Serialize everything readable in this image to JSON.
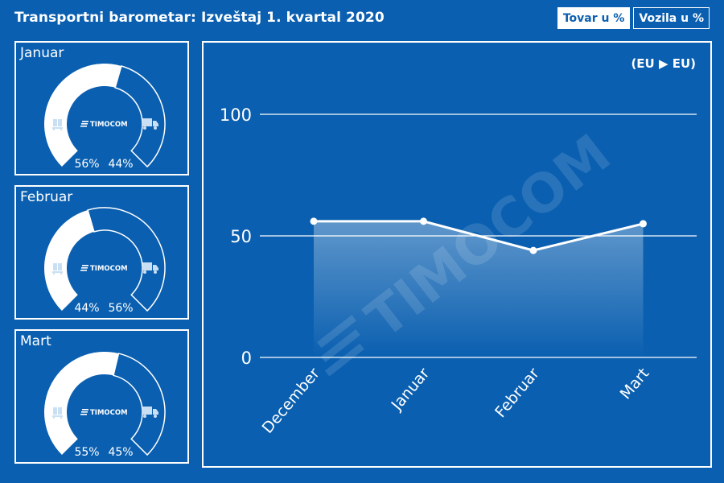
{
  "header": {
    "title": "Transportni barometar: Izveštaj 1. kvartal 2020",
    "tabs": [
      {
        "label": "Tovar u %",
        "active": true
      },
      {
        "label": "Vozila u %",
        "active": false
      }
    ]
  },
  "gauges": [
    {
      "month": "Januar",
      "freight_pct": 56,
      "vehicle_pct": 44,
      "freight_label": "56%",
      "vehicle_label": "44%",
      "brand": "TIMOCOM"
    },
    {
      "month": "Februar",
      "freight_pct": 44,
      "vehicle_pct": 56,
      "freight_label": "44%",
      "vehicle_label": "56%",
      "brand": "TIMOCOM"
    },
    {
      "month": "Mart",
      "freight_pct": 55,
      "vehicle_pct": 45,
      "freight_label": "55%",
      "vehicle_label": "45%",
      "brand": "TIMOCOM"
    }
  ],
  "chart": {
    "route_label": "(EU ▶ EU)",
    "watermark": "TIMOCOM"
  },
  "colors": {
    "background": "#0a5fb0",
    "foreground": "#ffffff"
  },
  "chart_data": {
    "type": "area",
    "categories": [
      "December",
      "Januar",
      "Februar",
      "Mart"
    ],
    "values": [
      56,
      56,
      44,
      55
    ],
    "ylim": [
      0,
      100
    ],
    "yticks": [
      0,
      50,
      100
    ],
    "grid": true
  }
}
